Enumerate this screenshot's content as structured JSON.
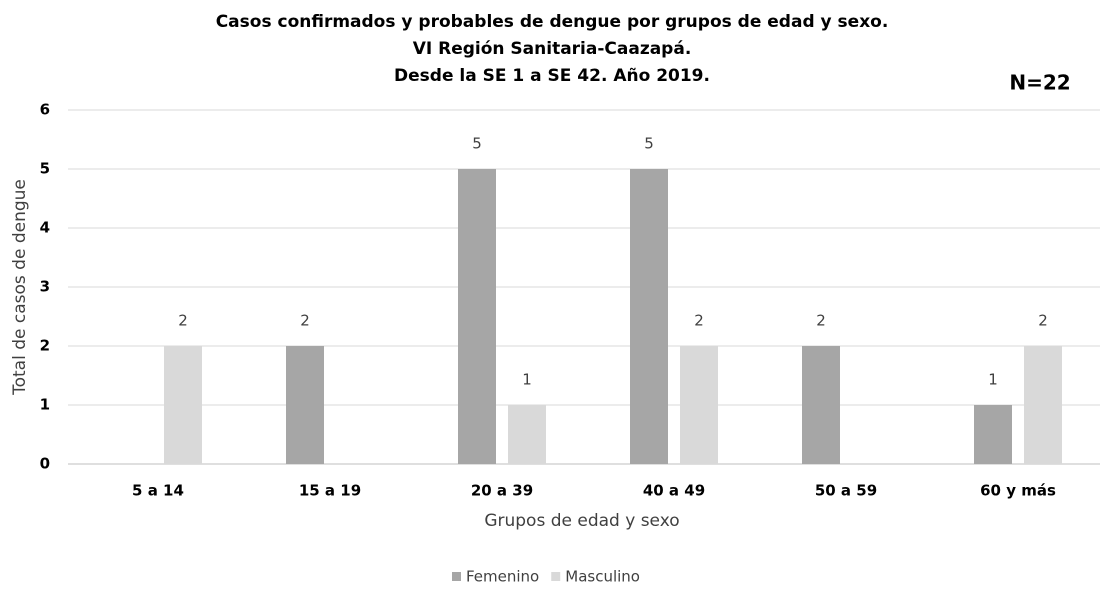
{
  "chart_data": {
    "type": "bar",
    "title": [
      "Casos confirmados y probables de dengue por grupos de edad y sexo.",
      "VI Región Sanitaria-Caazapá.",
      "Desde la SE 1 a SE 42. Año 2019."
    ],
    "annotation": "N=22",
    "x_label": "Grupos de edad y sexo",
    "y_label": "Total de casos de dengue",
    "categories": [
      "5 a 14",
      "15 a 19",
      "20 a 39",
      "40 a 49",
      "50 a 59",
      "60 y más"
    ],
    "series": [
      {
        "name": "Femenino",
        "color": "#a6a6a6",
        "values": [
          null,
          2,
          5,
          5,
          2,
          1
        ]
      },
      {
        "name": "Masculino",
        "color": "#d9d9d9",
        "values": [
          2,
          null,
          1,
          2,
          null,
          2
        ]
      }
    ],
    "ylim": [
      0,
      6
    ],
    "yticks": [
      0,
      1,
      2,
      3,
      4,
      5,
      6
    ],
    "grid": true,
    "legend": "bottom"
  }
}
